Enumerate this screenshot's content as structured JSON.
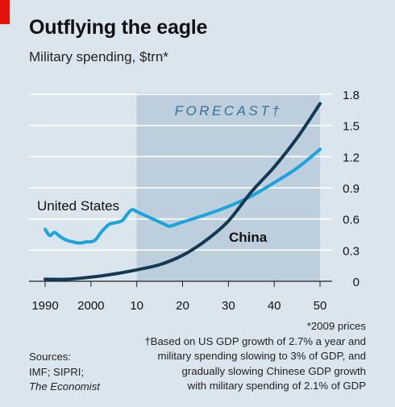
{
  "header": {
    "title": "Outflying the eagle",
    "subtitle": "Military spending, $trn*"
  },
  "footnotes": {
    "prices": "*2009 prices",
    "line1": "†Based on US GDP growth of 2.7% a year and",
    "line2": "military spending slowing to 3% of GDP, and",
    "line3": "gradually slowing Chinese GDP growth",
    "line4": "with military spending of 2.1% of GDP"
  },
  "sources": {
    "line1": "Sources:",
    "line2": "IMF; SIPRI;",
    "line3": "The Economist"
  },
  "colors": {
    "us": "#1ba3dc",
    "china": "#123a53",
    "forecast_band": "#bdcfdd",
    "background": "#dbe5ee",
    "accent": "#e3120b"
  },
  "chart_data": {
    "type": "line",
    "title": "Outflying the eagle",
    "subtitle": "Military spending, $trn*",
    "xlim": [
      1990,
      2050
    ],
    "ylim": [
      0,
      1.8
    ],
    "x_ticks": [
      1990,
      2000,
      2010,
      2020,
      2030,
      2040,
      2050
    ],
    "x_tick_labels": [
      "1990",
      "2000",
      "10",
      "20",
      "30",
      "40",
      "50"
    ],
    "y_ticks": [
      0,
      0.3,
      0.6,
      0.9,
      1.2,
      1.5,
      1.8
    ],
    "y_tick_labels": [
      "0",
      "0.3",
      "0.6",
      "0.9",
      "1.2",
      "1.5",
      "1.8"
    ],
    "y_axis_side": "right",
    "grid": true,
    "forecast_region": {
      "label": "FORECAST†",
      "x_start": 2010,
      "x_end": 2050
    },
    "series": [
      {
        "name": "United States",
        "x": [
          1990,
          1991,
          1992,
          1993,
          1994,
          1995,
          1996,
          1997,
          1998,
          1999,
          2000,
          2001,
          2002,
          2003,
          2004,
          2005,
          2006,
          2007,
          2008,
          2009,
          2010,
          2012,
          2014,
          2016,
          2017,
          2018,
          2020,
          2025,
          2030,
          2035,
          2040,
          2045,
          2050
        ],
        "y": [
          0.5,
          0.44,
          0.47,
          0.44,
          0.41,
          0.39,
          0.38,
          0.37,
          0.37,
          0.38,
          0.38,
          0.4,
          0.46,
          0.51,
          0.55,
          0.56,
          0.57,
          0.59,
          0.65,
          0.69,
          0.67,
          0.63,
          0.59,
          0.55,
          0.53,
          0.54,
          0.57,
          0.64,
          0.72,
          0.82,
          0.95,
          1.09,
          1.27
        ]
      },
      {
        "name": "China",
        "x": [
          1990,
          1995,
          2000,
          2005,
          2010,
          2015,
          2020,
          2025,
          2030,
          2035,
          2040,
          2045,
          2050
        ],
        "y": [
          0.02,
          0.02,
          0.04,
          0.07,
          0.11,
          0.16,
          0.25,
          0.39,
          0.58,
          0.86,
          1.1,
          1.38,
          1.71
        ]
      }
    ],
    "series_labels": [
      {
        "text": "United States",
        "series": "United States"
      },
      {
        "text": "China",
        "series": "China"
      }
    ]
  }
}
